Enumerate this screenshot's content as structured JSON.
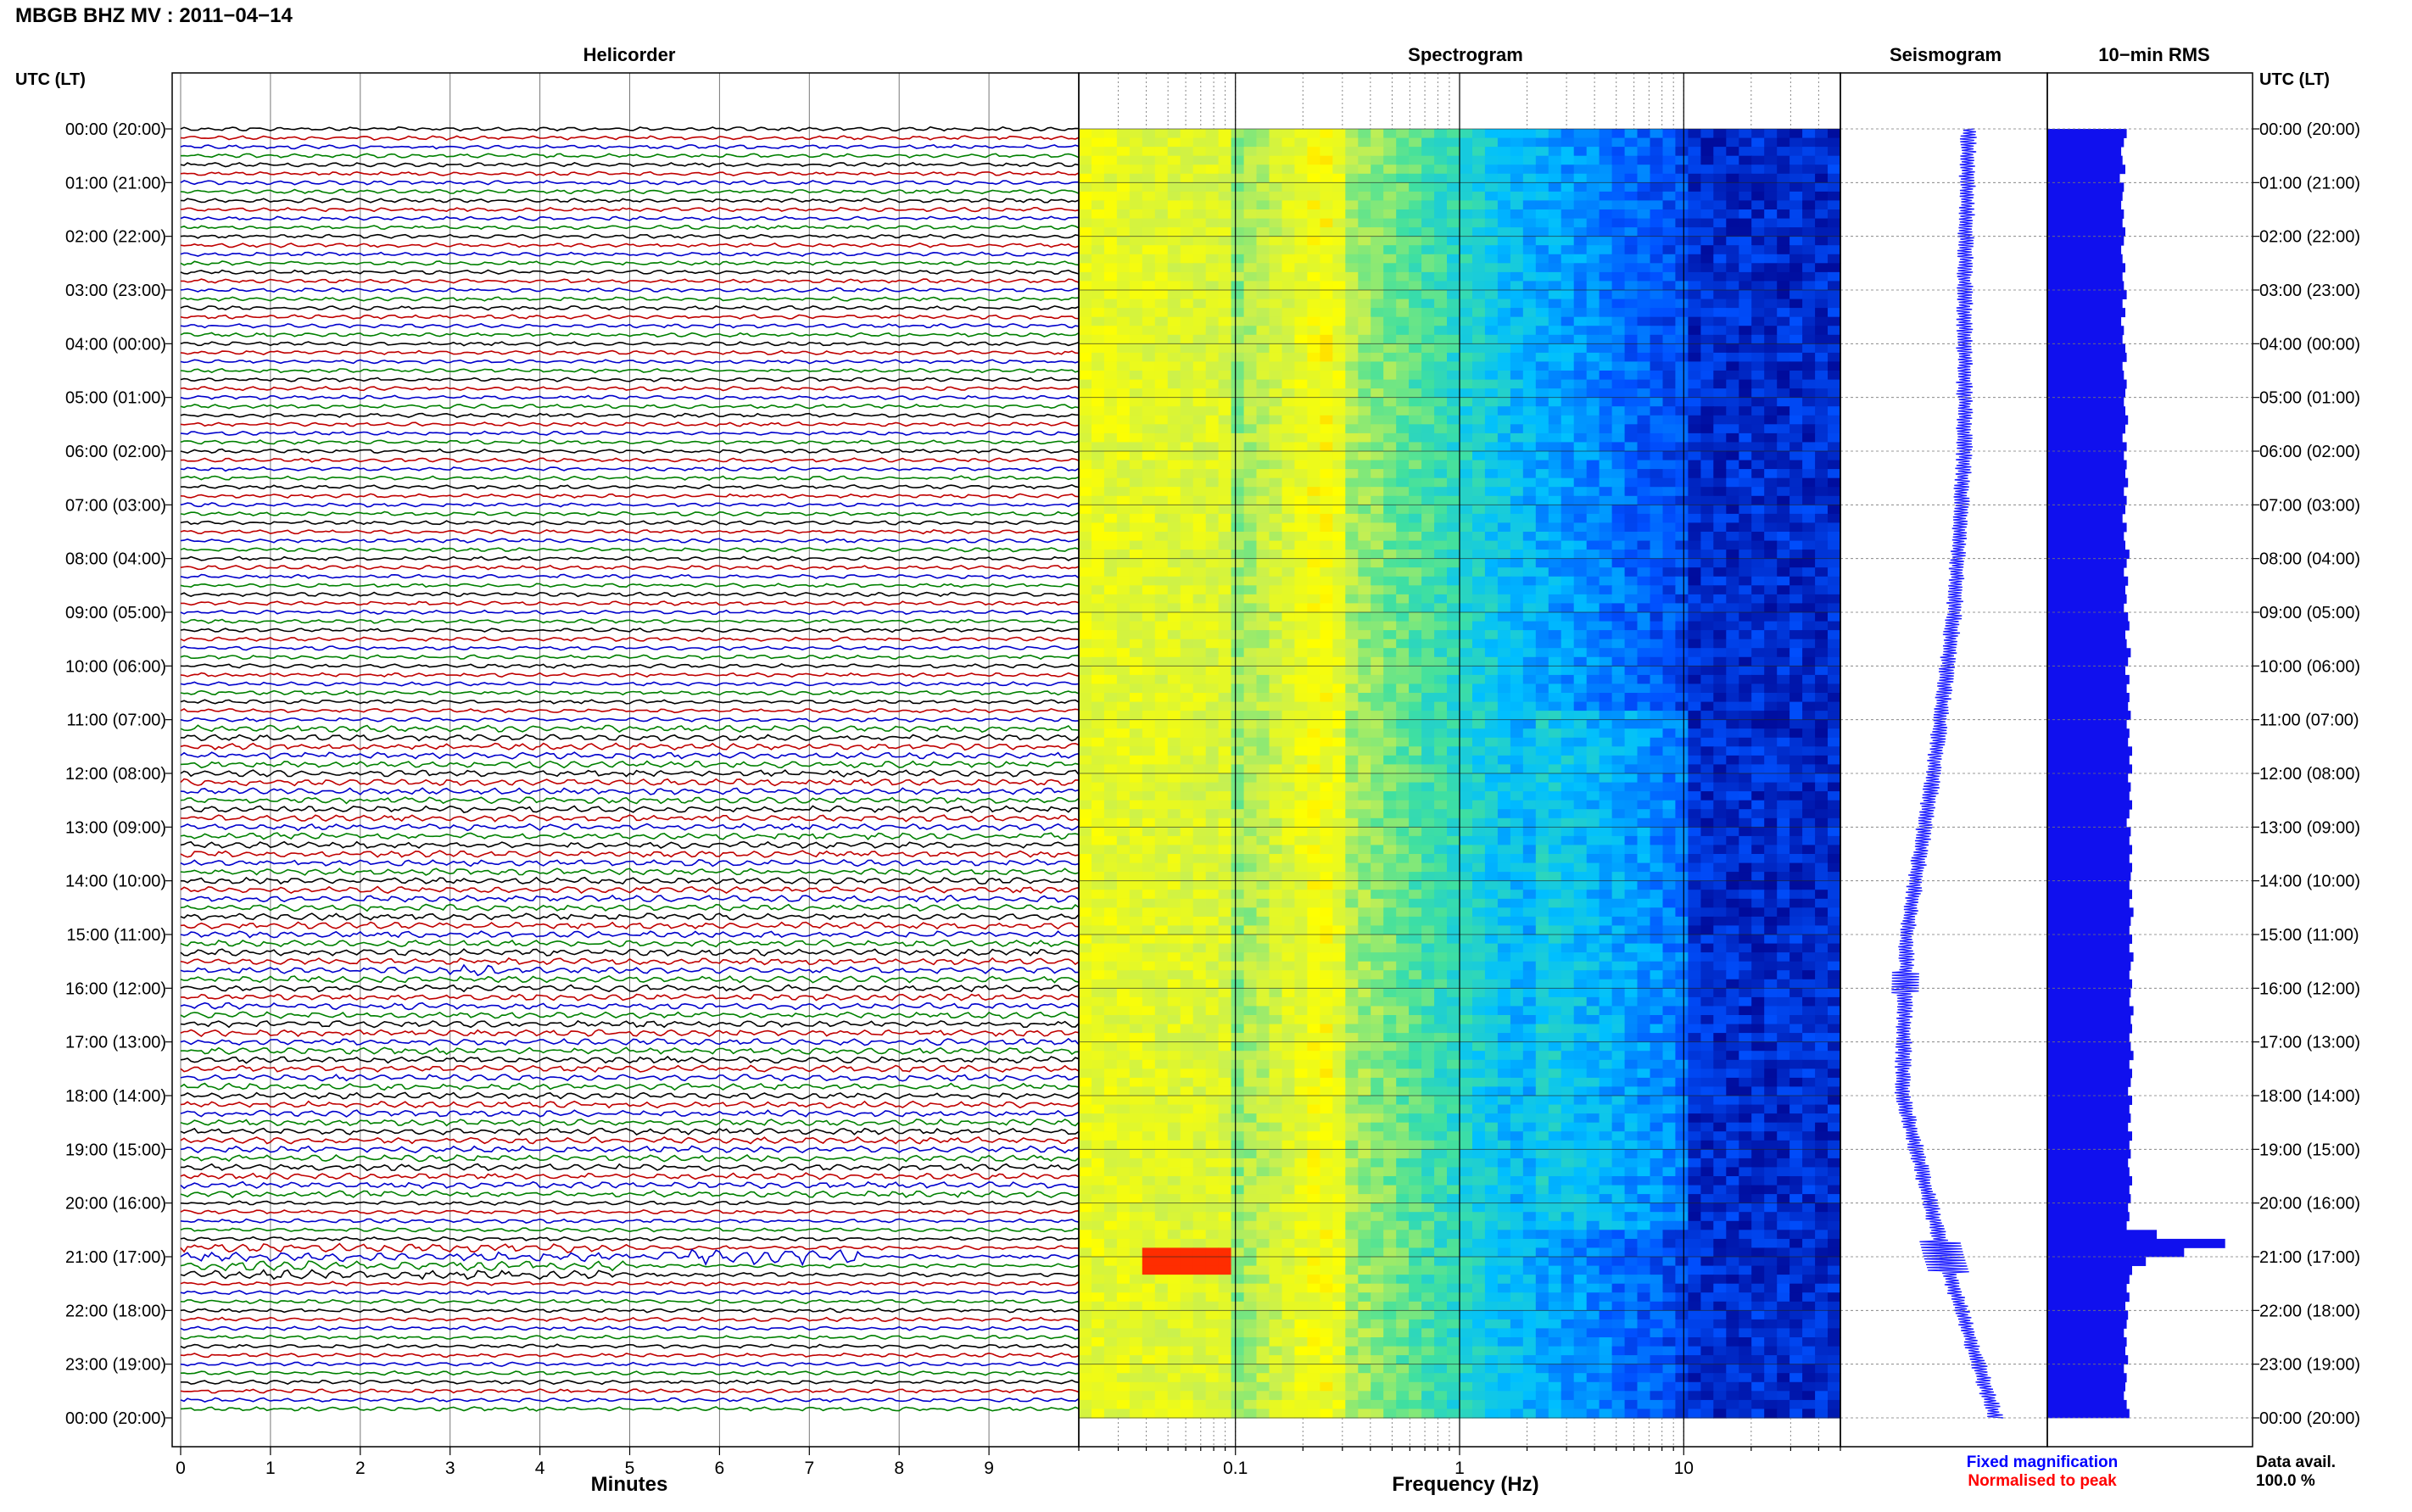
{
  "header": {
    "station_title": "MBGB BHZ MV : 2011−04−14"
  },
  "panels": {
    "helicorder_title": "Helicorder",
    "spectrogram_title": "Spectrogram",
    "seismogram_title": "Seismogram",
    "rms_title": "10−min RMS"
  },
  "axis_labels": {
    "utc_left": "UTC (LT)",
    "utc_right": "UTC (LT)",
    "minutes": "Minutes",
    "frequency": "Frequency (Hz)"
  },
  "legend": {
    "fixed": "Fixed magnification",
    "normalised": "Normalised to peak",
    "fixed_color": "#0000ff",
    "normalised_color": "#ff0000"
  },
  "data_availability": {
    "label": "Data avail.",
    "value": "100.0 %"
  },
  "colors": {
    "trace_cycle": [
      "#000000",
      "#c00000",
      "#0000cc",
      "#008000"
    ],
    "seismogram": "#2222ff",
    "rms": "#1010ee",
    "grid": "#888888"
  },
  "chart_data": [
    {
      "type": "line",
      "name": "helicorder",
      "xlabel": "Minutes",
      "x_ticks": [
        0,
        1,
        2,
        3,
        4,
        5,
        6,
        7,
        8,
        9
      ],
      "xlim": [
        0,
        10
      ],
      "y_tick_labels": [
        "00:00 (20:00)",
        "01:00 (21:00)",
        "02:00 (22:00)",
        "03:00 (23:00)",
        "04:00 (00:00)",
        "05:00 (01:00)",
        "06:00 (02:00)",
        "07:00 (03:00)",
        "08:00 (04:00)",
        "09:00 (05:00)",
        "10:00 (06:00)",
        "11:00 (07:00)",
        "12:00 (08:00)",
        "13:00 (09:00)",
        "14:00 (10:00)",
        "15:00 (11:00)",
        "16:00 (12:00)",
        "17:00 (13:00)",
        "18:00 (14:00)",
        "19:00 (15:00)",
        "20:00 (16:00)",
        "21:00 (17:00)",
        "22:00 (18:00)",
        "23:00 (19:00)",
        "00:00 (20:00)"
      ],
      "rows": 144,
      "minutes_per_row": 10
    },
    {
      "type": "heatmap",
      "name": "spectrogram",
      "xlabel": "Frequency (Hz)",
      "x_scale": "log",
      "xlim": [
        0.02,
        50
      ],
      "x_ticks": [
        0.1,
        1,
        10
      ],
      "colormap": [
        "#00008b",
        "#0050ff",
        "#00bfff",
        "#40e0a0",
        "#c8f050",
        "#ffff00",
        "#ff8000",
        "#ff0000"
      ]
    },
    {
      "type": "line",
      "name": "seismogram",
      "description_hours": [
        0,
        3,
        6,
        9,
        12,
        15,
        18,
        21,
        24
      ],
      "relative_offset": [
        0.62,
        0.6,
        0.6,
        0.55,
        0.45,
        0.32,
        0.3,
        0.5,
        0.75
      ]
    },
    {
      "type": "bar",
      "name": "rms",
      "orientation": "horizontal",
      "intervals": 144,
      "values": [
        0.58,
        0.56,
        0.54,
        0.55,
        0.57,
        0.53,
        0.56,
        0.55,
        0.54,
        0.56,
        0.55,
        0.57,
        0.56,
        0.54,
        0.55,
        0.57,
        0.55,
        0.56,
        0.58,
        0.55,
        0.57,
        0.54,
        0.56,
        0.55,
        0.57,
        0.58,
        0.55,
        0.56,
        0.58,
        0.57,
        0.56,
        0.57,
        0.59,
        0.57,
        0.55,
        0.58,
        0.56,
        0.58,
        0.57,
        0.59,
        0.56,
        0.58,
        0.57,
        0.55,
        0.58,
        0.56,
        0.57,
        0.6,
        0.58,
        0.56,
        0.59,
        0.57,
        0.58,
        0.56,
        0.59,
        0.6,
        0.57,
        0.58,
        0.61,
        0.59,
        0.57,
        0.6,
        0.58,
        0.6,
        0.59,
        0.61,
        0.58,
        0.6,
        0.59,
        0.62,
        0.6,
        0.62,
        0.59,
        0.61,
        0.6,
        0.62,
        0.6,
        0.58,
        0.61,
        0.6,
        0.62,
        0.6,
        0.62,
        0.61,
        0.6,
        0.62,
        0.6,
        0.63,
        0.61,
        0.6,
        0.62,
        0.6,
        0.63,
        0.61,
        0.6,
        0.62,
        0.61,
        0.6,
        0.63,
        0.61,
        0.62,
        0.6,
        0.61,
        0.63,
        0.6,
        0.62,
        0.61,
        0.59,
        0.62,
        0.6,
        0.61,
        0.59,
        0.62,
        0.6,
        0.61,
        0.59,
        0.6,
        0.62,
        0.6,
        0.61,
        0.59,
        0.6,
        0.58,
        0.8,
        1.3,
        1.0,
        0.72,
        0.62,
        0.6,
        0.58,
        0.6,
        0.57,
        0.59,
        0.58,
        0.56,
        0.58,
        0.57,
        0.59,
        0.56,
        0.58,
        0.57,
        0.56,
        0.58,
        0.6
      ],
      "xlim": [
        0,
        1.5
      ]
    }
  ]
}
